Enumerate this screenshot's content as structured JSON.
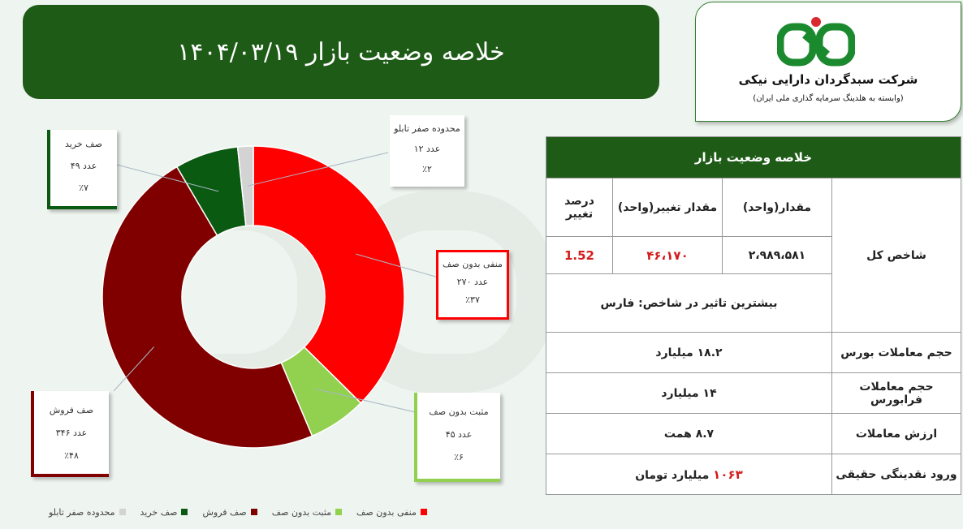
{
  "header": {
    "title": "خلاصه وضعیت بازار ۱۴۰۴/۰۳/۱۹"
  },
  "company": {
    "name": "شرکت سبدگردان دارایی نیکی",
    "subtitle": "(وابسته به هلدینگ سرمایه گذاری ملی ایران)",
    "brand_color": "#1b8a2e",
    "logo_accent": "#d9282f"
  },
  "chart_data": {
    "type": "pie",
    "donut": true,
    "categories": [
      "منفی بدون صف",
      "مثبت بدون صف",
      "صف فروش",
      "صف خرید",
      "محدوده صفر تابلو"
    ],
    "values": [
      270,
      45,
      346,
      49,
      12
    ],
    "count_labels": [
      "۲۷۰ عدد",
      "۴۵ عدد",
      "۳۴۶ عدد",
      "۴۹ عدد",
      "۱۲ عدد"
    ],
    "percent_labels": [
      "٪۳۷",
      "٪۶",
      "٪۴۸",
      "٪۷",
      "٪۲"
    ],
    "colors": [
      "#ff0000",
      "#92d050",
      "#800000",
      "#0b5a12",
      "#d3d3d3"
    ],
    "legend_position": "bottom"
  },
  "summary": {
    "heading": "خلاصه وضعیت بازار",
    "col_value": "مقدار(واحد)",
    "col_change": "مقدار تغییر(واحد)",
    "col_pct": "درصد تغییر",
    "index_label": "شاخص کل",
    "index_value": "۲،۹۸۹،۵۸۱",
    "index_change": "۴۶،۱۷۰",
    "index_pct": "1.52",
    "most_impact": "بیشترین تاثیر در شاخص: فارس",
    "rows": [
      {
        "label": "حجم معاملات بورس",
        "value": "۱۸.۲ میلیارد"
      },
      {
        "label": "حجم معاملات فرابورس",
        "value": "۱۴ میلیارد"
      },
      {
        "label": "ارزش معاملات",
        "value": "۸.۷ همت"
      }
    ],
    "liquidity_label": "ورود نقدینگی حقیقی",
    "liquidity_value": "۱۰۶۳",
    "liquidity_unit": "میلیارد تومان"
  }
}
